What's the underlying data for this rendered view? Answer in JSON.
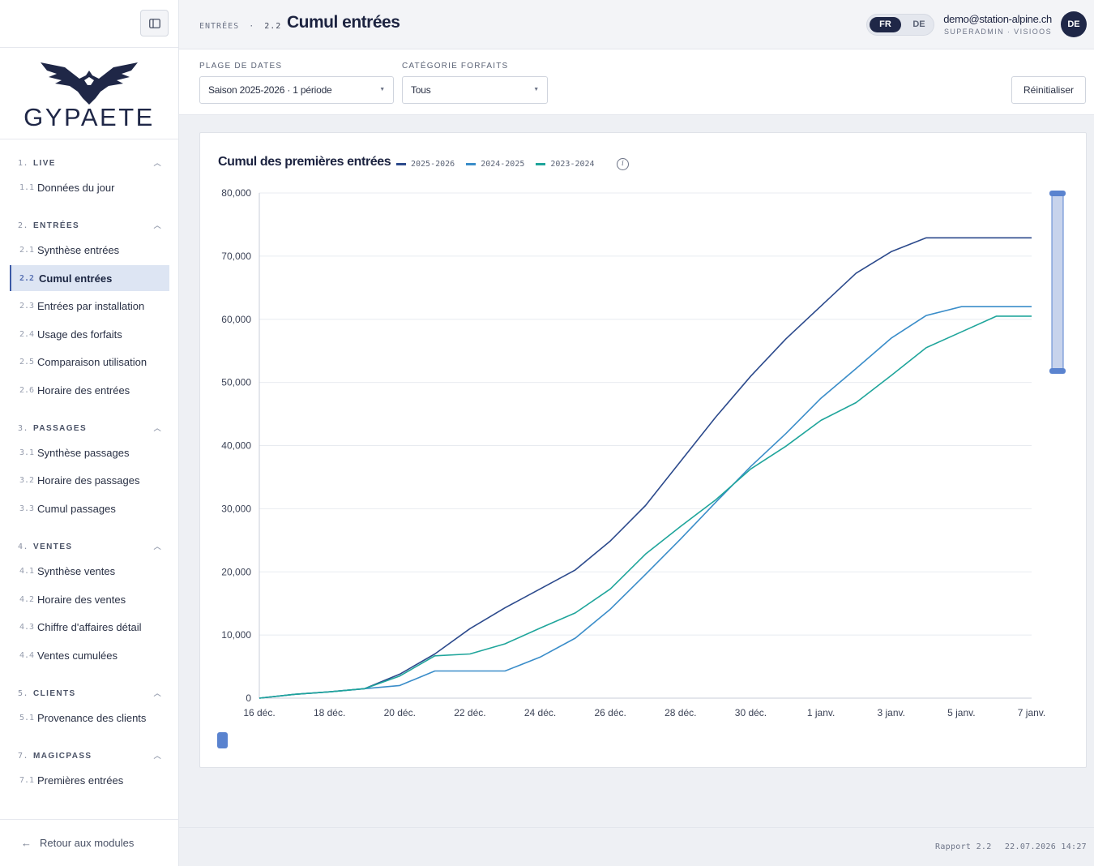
{
  "sidebar": {
    "logo_text": "GYPAETE",
    "sections": [
      {
        "num": "1.",
        "label": "LIVE",
        "items": [
          {
            "num": "1.1",
            "label": "Données du jour"
          }
        ]
      },
      {
        "num": "2.",
        "label": "ENTRÉES",
        "items": [
          {
            "num": "2.1",
            "label": "Synthèse entrées"
          },
          {
            "num": "2.2",
            "label": "Cumul entrées",
            "active": true
          },
          {
            "num": "2.3",
            "label": "Entrées par installation"
          },
          {
            "num": "2.4",
            "label": "Usage des forfaits"
          },
          {
            "num": "2.5",
            "label": "Comparaison utilisation"
          },
          {
            "num": "2.6",
            "label": "Horaire des entrées"
          }
        ]
      },
      {
        "num": "3.",
        "label": "PASSAGES",
        "items": [
          {
            "num": "3.1",
            "label": "Synthèse passages"
          },
          {
            "num": "3.2",
            "label": "Horaire des passages"
          },
          {
            "num": "3.3",
            "label": "Cumul passages"
          }
        ]
      },
      {
        "num": "4.",
        "label": "VENTES",
        "items": [
          {
            "num": "4.1",
            "label": "Synthèse ventes"
          },
          {
            "num": "4.2",
            "label": "Horaire des ventes"
          },
          {
            "num": "4.3",
            "label": "Chiffre d'affaires détail"
          },
          {
            "num": "4.4",
            "label": "Ventes cumulées"
          }
        ]
      },
      {
        "num": "5.",
        "label": "CLIENTS",
        "items": [
          {
            "num": "5.1",
            "label": "Provenance des clients"
          }
        ]
      },
      {
        "num": "7.",
        "label": "MAGICPASS",
        "items": [
          {
            "num": "7.1",
            "label": "Premières entrées"
          }
        ]
      }
    ],
    "back_label": "Retour aux modules"
  },
  "header": {
    "crumb_section": "ENTRÉES",
    "crumb_sep": "·",
    "crumb_num": "2.2",
    "title": "Cumul entrées",
    "lang_active": "FR",
    "lang_other": "DE",
    "user_email": "demo@station-alpine.ch",
    "user_role": "SUPERADMIN · VISIOOS",
    "avatar_initials": "DE"
  },
  "filters": {
    "date_label": "PLAGE DE DATES",
    "date_value": "Saison 2025-2026 · 1 période",
    "category_label": "CATÉGORIE FORFAITS",
    "category_value": "Tous",
    "reset_label": "Réinitialiser"
  },
  "chart_data": {
    "type": "line",
    "title": "Cumul des premières entrées",
    "x": [
      "16 déc.",
      "17 déc.",
      "18 déc.",
      "19 déc.",
      "20 déc.",
      "21 déc.",
      "22 déc.",
      "23 déc.",
      "24 déc.",
      "25 déc.",
      "26 déc.",
      "27 déc.",
      "28 déc.",
      "29 déc.",
      "30 déc.",
      "31 déc.",
      "1 janv.",
      "2 janv.",
      "3 janv.",
      "4 janv.",
      "5 janv.",
      "6 janv.",
      "7 janv."
    ],
    "x_tick_labels": [
      "16 déc.",
      "18 déc.",
      "20 déc.",
      "22 déc.",
      "24 déc.",
      "26 déc.",
      "28 déc.",
      "30 déc.",
      "1 janv.",
      "3 janv.",
      "5 janv.",
      "7 janv."
    ],
    "y_ticks": [
      "0",
      "10,000",
      "20,000",
      "30,000",
      "40,000",
      "50,000",
      "60,000",
      "70,000",
      "80,000"
    ],
    "ylim": [
      0,
      80000
    ],
    "series": [
      {
        "name": "2025-2026",
        "color": "#2c4a8c",
        "values": [
          0,
          600,
          1000,
          1500,
          3800,
          7000,
          11000,
          14300,
          17300,
          20300,
          24900,
          30500,
          37500,
          44500,
          51000,
          56900,
          62100,
          67300,
          70700,
          72900,
          72900,
          72900,
          72900
        ]
      },
      {
        "name": "2024-2025",
        "color": "#3a8dc9",
        "values": [
          0,
          600,
          1000,
          1500,
          2000,
          4300,
          4300,
          4300,
          6500,
          9500,
          14100,
          19600,
          25200,
          31000,
          36700,
          41900,
          47500,
          52200,
          57000,
          60600,
          62000,
          62000,
          62000
        ]
      },
      {
        "name": "2023-2024",
        "color": "#1fa59b",
        "values": [
          0,
          600,
          1000,
          1500,
          3500,
          6700,
          7000,
          8600,
          11100,
          13500,
          17300,
          22800,
          27200,
          31400,
          36300,
          39900,
          44000,
          46800,
          51100,
          55500,
          58000,
          60500,
          60500
        ]
      }
    ],
    "grid": true,
    "legend": "top-left"
  },
  "footer": {
    "report": "Rapport 2.2",
    "timestamp": "22.07.2026 14:27"
  }
}
